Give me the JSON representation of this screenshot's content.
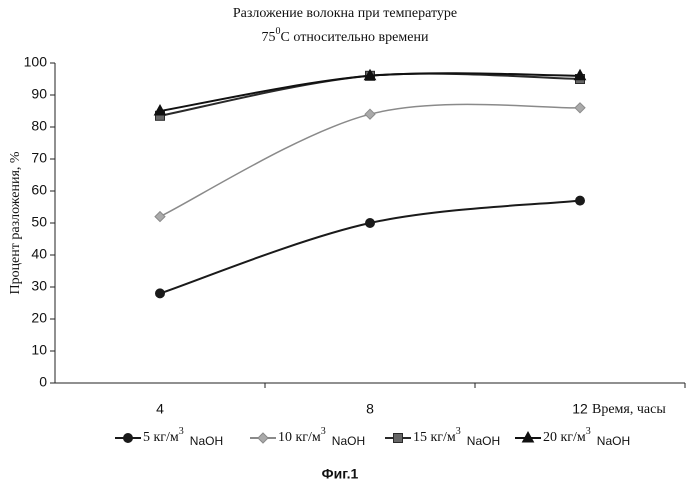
{
  "chart_data": {
    "type": "line",
    "title": {
      "line1": "Разложение волокна при температуре",
      "line2": {
        "number": "75",
        "superscript": "0",
        "rest": "С относительно времени"
      }
    },
    "ylabel": "Процент разложения, %",
    "xlabel": "Время, часы",
    "categories": [
      "4",
      "8",
      "12"
    ],
    "ylim": [
      0,
      100
    ],
    "yticks": [
      0,
      10,
      20,
      30,
      40,
      50,
      60,
      70,
      80,
      90,
      100
    ],
    "grid": false,
    "series": [
      {
        "name": "5 кг/м",
        "name_sup": "3",
        "name_suffix": "NaOH",
        "color": "#1a1a1a",
        "marker": "circle",
        "values": [
          28,
          50,
          57
        ]
      },
      {
        "name": "10 кг/м",
        "name_sup": "3",
        "name_suffix": "NaOH",
        "color": "#8a8a8a",
        "marker": "diamond",
        "values": [
          52,
          84,
          86
        ]
      },
      {
        "name": "15 кг/м",
        "name_sup": "3",
        "name_suffix": "NaOH",
        "color": "#2a2a2a",
        "marker": "square",
        "values": [
          83.5,
          96,
          95
        ]
      },
      {
        "name": "20 кг/м",
        "name_sup": "3",
        "name_suffix": "NaOH",
        "color": "#111111",
        "marker": "triangle",
        "values": [
          85,
          96,
          96
        ]
      }
    ],
    "figure_label": "Фиг.1"
  }
}
